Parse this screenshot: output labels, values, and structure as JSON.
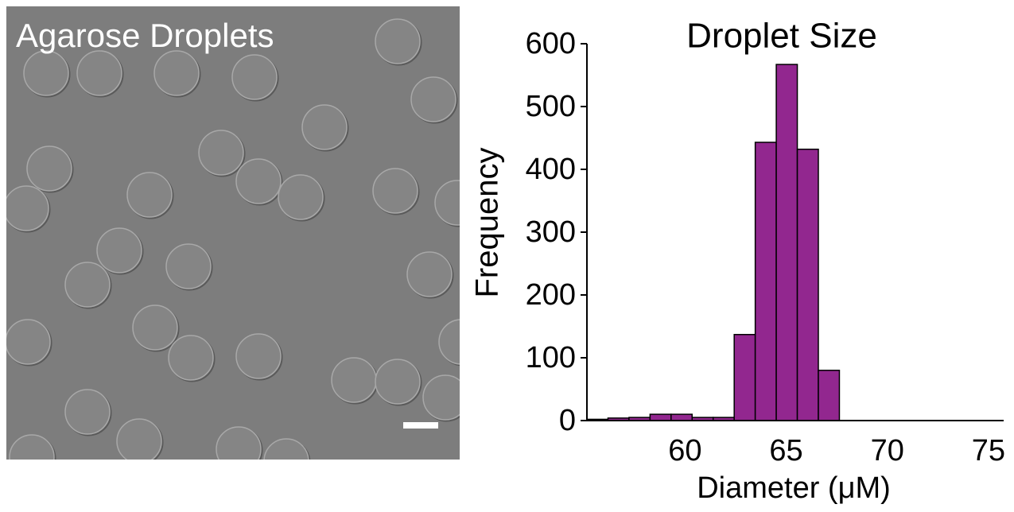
{
  "image": {
    "label": "Agarose Droplets"
  },
  "chart_data": {
    "type": "histogram",
    "title": "Droplet Size",
    "x_label": "Diameter (μM)",
    "y_label": "Frequency",
    "bins": [
      55.15,
      56.19,
      57.23,
      58.27,
      59.31,
      60.35,
      61.39,
      62.43,
      63.47,
      64.51,
      65.55,
      66.59,
      67.63
    ],
    "values": [
      2,
      4,
      5,
      10,
      10,
      5,
      5,
      137,
      443,
      567,
      432,
      80
    ],
    "color": "#92278f",
    "xlim": [
      55.15,
      75.75
    ],
    "xticks": [
      60,
      65,
      70,
      75
    ],
    "ylim": [
      0,
      600
    ],
    "yticks": [
      0,
      100,
      200,
      300,
      400,
      500,
      600
    ]
  }
}
